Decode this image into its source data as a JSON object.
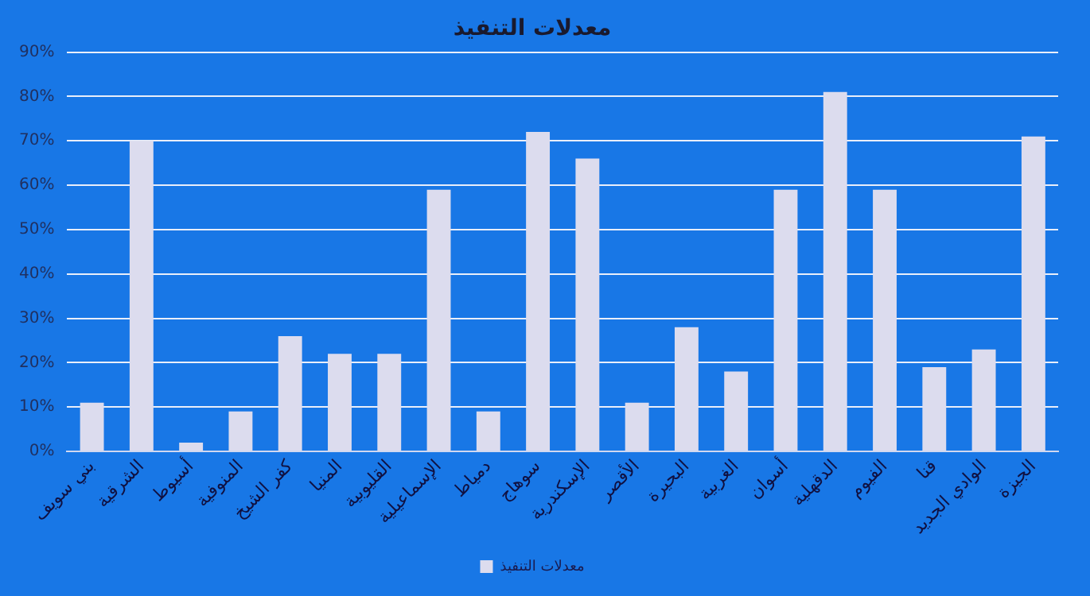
{
  "chart_data": {
    "type": "bar",
    "title": "معدلات التنفيذ",
    "categories": [
      "بني سويف",
      "الشرقية",
      "أسيوط",
      "المنوفية",
      "كفر الشيخ",
      "المنيا",
      "القليوبية",
      "الإسماعيلية",
      "دمياط",
      "سوهاج",
      "الإسكندرية",
      "الأقصر",
      "البحيرة",
      "الغربية",
      "أسوان",
      "الدقهلية",
      "الفيوم",
      "قنا",
      "الوادي الجديد",
      "الجيزة"
    ],
    "series": [
      {
        "name": "معدلات التنفيذ",
        "color": "#dcdcee",
        "values": [
          11,
          70,
          2,
          9,
          26,
          22,
          22,
          59,
          9,
          72,
          66,
          11,
          28,
          18,
          59,
          81,
          59,
          19,
          23,
          71
        ]
      }
    ],
    "ylim": [
      0,
      90
    ],
    "yticks": [
      {
        "value": 0,
        "label": "0%"
      },
      {
        "value": 10,
        "label": "10%"
      },
      {
        "value": 20,
        "label": "20%"
      },
      {
        "value": 30,
        "label": "30%"
      },
      {
        "value": 40,
        "label": "40%"
      },
      {
        "value": 50,
        "label": "50%"
      },
      {
        "value": 60,
        "label": "60%"
      },
      {
        "value": 70,
        "label": "70%"
      },
      {
        "value": 80,
        "label": "80%"
      },
      {
        "value": 90,
        "label": "90%"
      }
    ],
    "grid": "y",
    "legend": "bottom"
  }
}
